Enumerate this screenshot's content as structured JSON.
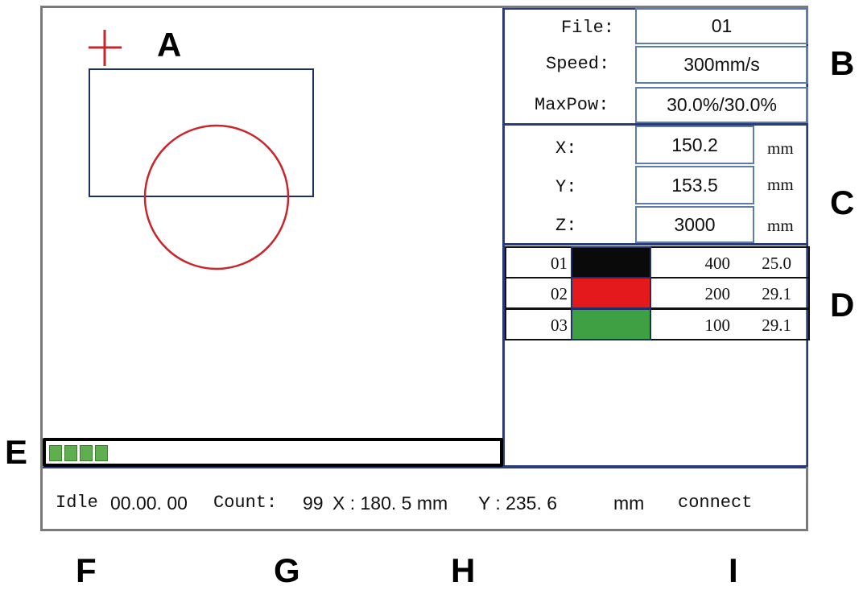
{
  "callouts": {
    "a": "A",
    "b": "B",
    "c": "C",
    "d": "D",
    "e": "E",
    "f": "F",
    "g": "G",
    "h": "H",
    "i": "I"
  },
  "file_info": {
    "file_label": "File:",
    "file_value": "01",
    "speed_label": "Speed:",
    "speed_value": "300mm/s",
    "maxpow_label": "MaxPow:",
    "maxpow_value": "30.0%/30.0%"
  },
  "coordinates": {
    "x_label": "X:",
    "x_value": "150.2",
    "x_unit": "mm",
    "y_label": "Y:",
    "y_value": "153.5",
    "y_unit": "mm",
    "z_label": "Z:",
    "z_value": "3000",
    "z_unit": "mm"
  },
  "layers": [
    {
      "num": "01",
      "color": "#0a0a0a",
      "speed": "400",
      "power": "25.0"
    },
    {
      "num": "02",
      "color": "#e3191b",
      "speed": "200",
      "power": "29.1"
    },
    {
      "num": "03",
      "color": "#3ea043",
      "speed": "100",
      "power": "29.1"
    }
  ],
  "progress": {
    "filled_blocks": 4
  },
  "status_bar": {
    "state": "Idle",
    "time": "00.00. 00",
    "count_label": "Count:",
    "count_value": "99",
    "pos_x": "X : 180. 5 mm",
    "pos_y": "Y : 235. 6",
    "unit": "mm",
    "connection": "connect"
  },
  "colors": {
    "frame": "#2b3a7a",
    "crosshair": "#c9262b",
    "circle": "#c9262b",
    "rect": "#1e2f6a",
    "progress_fill": "#5fae4f"
  },
  "icons": {
    "origin_marker": "crosshair-icon"
  }
}
